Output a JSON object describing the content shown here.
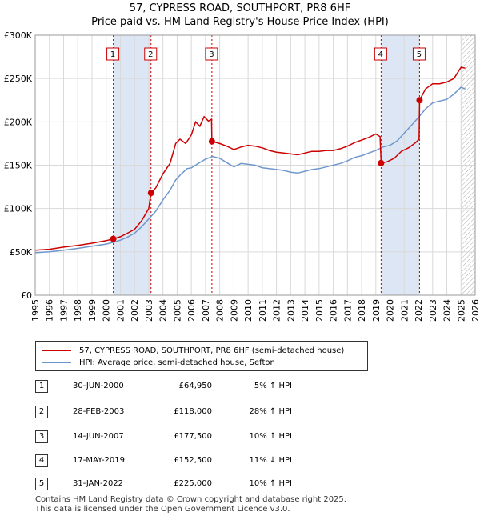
{
  "header": {
    "title": "57, CYPRESS ROAD, SOUTHPORT, PR8 6HF",
    "subtitle": "Price paid vs. HM Land Registry's House Price Index (HPI)"
  },
  "colors": {
    "property": "#cc0000",
    "hpi": "#6f97cc",
    "shade": "#dde6f4",
    "grid": "#d9d9d9"
  },
  "chart_data": {
    "type": "line",
    "title": "57, CYPRESS ROAD, SOUTHPORT, PR8 6HF",
    "subtitle": "Price paid vs. HM Land Registry's House Price Index (HPI)",
    "xlim": [
      1995,
      2026
    ],
    "ylim": [
      0,
      300000
    ],
    "yticks": [
      0,
      50000,
      100000,
      150000,
      200000,
      250000,
      300000
    ],
    "ytick_labels": [
      "£0",
      "£50K",
      "£100K",
      "£150K",
      "£200K",
      "£250K",
      "£300K"
    ],
    "xticks": [
      1995,
      1996,
      1997,
      1998,
      1999,
      2000,
      2001,
      2002,
      2003,
      2004,
      2005,
      2006,
      2007,
      2008,
      2009,
      2010,
      2011,
      2012,
      2013,
      2014,
      2015,
      2016,
      2017,
      2018,
      2019,
      2020,
      2021,
      2022,
      2023,
      2024,
      2025,
      2026
    ],
    "grid": true,
    "legend_position": "below",
    "shaded_spans": [
      [
        2000.5,
        2003.16
      ],
      [
        2019.37,
        2022.08
      ]
    ],
    "future_hatch_from": 2025.0,
    "series": [
      {
        "name": "57, CYPRESS ROAD, SOUTHPORT, PR8 6HF (semi-detached house)",
        "color": "#cc0000",
        "points": [
          [
            1995.0,
            52000
          ],
          [
            1996.0,
            53000
          ],
          [
            1997.0,
            55500
          ],
          [
            1998.0,
            57500
          ],
          [
            1999.0,
            60000
          ],
          [
            2000.0,
            63000
          ],
          [
            2000.5,
            64950
          ],
          [
            2001.0,
            67500
          ],
          [
            2001.5,
            71500
          ],
          [
            2002.0,
            76000
          ],
          [
            2002.5,
            86000
          ],
          [
            2003.0,
            100000
          ],
          [
            2003.16,
            118000
          ],
          [
            2003.5,
            124000
          ],
          [
            2004.0,
            140000
          ],
          [
            2004.5,
            152000
          ],
          [
            2004.9,
            175000
          ],
          [
            2005.2,
            180000
          ],
          [
            2005.6,
            175000
          ],
          [
            2006.0,
            185000
          ],
          [
            2006.3,
            200000
          ],
          [
            2006.6,
            195000
          ],
          [
            2006.9,
            206000
          ],
          [
            2007.2,
            201000
          ],
          [
            2007.42,
            203000
          ],
          [
            2007.45,
            177500
          ],
          [
            2008.0,
            175000
          ],
          [
            2008.5,
            172000
          ],
          [
            2009.0,
            168000
          ],
          [
            2009.5,
            171000
          ],
          [
            2010.0,
            173000
          ],
          [
            2010.5,
            172000
          ],
          [
            2011.0,
            170000
          ],
          [
            2011.5,
            167000
          ],
          [
            2012.0,
            165000
          ],
          [
            2012.5,
            164000
          ],
          [
            2013.0,
            163000
          ],
          [
            2013.5,
            162000
          ],
          [
            2014.0,
            164000
          ],
          [
            2014.5,
            166000
          ],
          [
            2015.0,
            166000
          ],
          [
            2015.5,
            167000
          ],
          [
            2016.0,
            167000
          ],
          [
            2016.5,
            169000
          ],
          [
            2017.0,
            172000
          ],
          [
            2017.5,
            176000
          ],
          [
            2018.0,
            179000
          ],
          [
            2018.5,
            182000
          ],
          [
            2019.0,
            186000
          ],
          [
            2019.3,
            183000
          ],
          [
            2019.37,
            152500
          ],
          [
            2019.8,
            154000
          ],
          [
            2020.3,
            158000
          ],
          [
            2020.8,
            166000
          ],
          [
            2021.3,
            170000
          ],
          [
            2021.8,
            176000
          ],
          [
            2022.05,
            180000
          ],
          [
            2022.08,
            225000
          ],
          [
            2022.5,
            238000
          ],
          [
            2023.0,
            244000
          ],
          [
            2023.5,
            244000
          ],
          [
            2024.0,
            246000
          ],
          [
            2024.5,
            250000
          ],
          [
            2025.0,
            263000
          ],
          [
            2025.3,
            262000
          ]
        ],
        "sales": [
          {
            "label": "1",
            "x": 2000.5,
            "y": 64950
          },
          {
            "label": "2",
            "x": 2003.16,
            "y": 118000
          },
          {
            "label": "3",
            "x": 2007.45,
            "y": 177500
          },
          {
            "label": "4",
            "x": 2019.37,
            "y": 152500
          },
          {
            "label": "5",
            "x": 2022.08,
            "y": 225000
          }
        ]
      },
      {
        "name": "HPI: Average price, semi-detached house, Sefton",
        "color": "#6f97cc",
        "points": [
          [
            1995.0,
            49000
          ],
          [
            1996.0,
            50000
          ],
          [
            1997.0,
            52000
          ],
          [
            1998.0,
            54000
          ],
          [
            1999.0,
            56500
          ],
          [
            2000.0,
            59000
          ],
          [
            2000.5,
            61000
          ],
          [
            2001.0,
            63500
          ],
          [
            2001.5,
            67000
          ],
          [
            2002.0,
            71500
          ],
          [
            2002.5,
            79000
          ],
          [
            2003.0,
            88000
          ],
          [
            2003.5,
            97000
          ],
          [
            2004.0,
            110000
          ],
          [
            2004.5,
            121000
          ],
          [
            2004.9,
            133000
          ],
          [
            2005.3,
            140000
          ],
          [
            2005.7,
            146000
          ],
          [
            2006.0,
            147000
          ],
          [
            2006.5,
            152000
          ],
          [
            2007.0,
            157000
          ],
          [
            2007.5,
            160000
          ],
          [
            2008.0,
            158000
          ],
          [
            2008.5,
            153000
          ],
          [
            2009.0,
            148000
          ],
          [
            2009.5,
            152000
          ],
          [
            2010.0,
            151000
          ],
          [
            2010.5,
            150000
          ],
          [
            2011.0,
            147000
          ],
          [
            2011.5,
            146000
          ],
          [
            2012.0,
            145000
          ],
          [
            2012.5,
            144000
          ],
          [
            2013.0,
            142000
          ],
          [
            2013.5,
            141000
          ],
          [
            2014.0,
            143000
          ],
          [
            2014.5,
            145000
          ],
          [
            2015.0,
            146000
          ],
          [
            2015.5,
            148000
          ],
          [
            2016.0,
            150000
          ],
          [
            2016.5,
            152000
          ],
          [
            2017.0,
            155000
          ],
          [
            2017.5,
            159000
          ],
          [
            2018.0,
            161000
          ],
          [
            2018.5,
            164000
          ],
          [
            2019.0,
            167000
          ],
          [
            2019.5,
            171000
          ],
          [
            2020.0,
            173000
          ],
          [
            2020.5,
            178000
          ],
          [
            2021.0,
            187000
          ],
          [
            2021.5,
            196000
          ],
          [
            2022.0,
            205000
          ],
          [
            2022.5,
            215000
          ],
          [
            2023.0,
            222000
          ],
          [
            2023.5,
            224000
          ],
          [
            2024.0,
            226000
          ],
          [
            2024.5,
            232000
          ],
          [
            2025.0,
            240000
          ],
          [
            2025.3,
            238000
          ]
        ]
      }
    ]
  },
  "legend": {
    "property_label": "57, CYPRESS ROAD, SOUTHPORT, PR8 6HF (semi-detached house)",
    "hpi_label": "HPI: Average price, semi-detached house, Sefton"
  },
  "transactions": [
    {
      "num": "1",
      "date": "30-JUN-2000",
      "price": "£64,950",
      "hpi": "5% ↑ HPI"
    },
    {
      "num": "2",
      "date": "28-FEB-2003",
      "price": "£118,000",
      "hpi": "28% ↑ HPI"
    },
    {
      "num": "3",
      "date": "14-JUN-2007",
      "price": "£177,500",
      "hpi": "10% ↑ HPI"
    },
    {
      "num": "4",
      "date": "17-MAY-2019",
      "price": "£152,500",
      "hpi": "11% ↓ HPI"
    },
    {
      "num": "5",
      "date": "31-JAN-2022",
      "price": "£225,000",
      "hpi": "10% ↑ HPI"
    }
  ],
  "footer": {
    "line1": "Contains HM Land Registry data © Crown copyright and database right 2025.",
    "line2": "This data is licensed under the Open Government Licence v3.0."
  }
}
